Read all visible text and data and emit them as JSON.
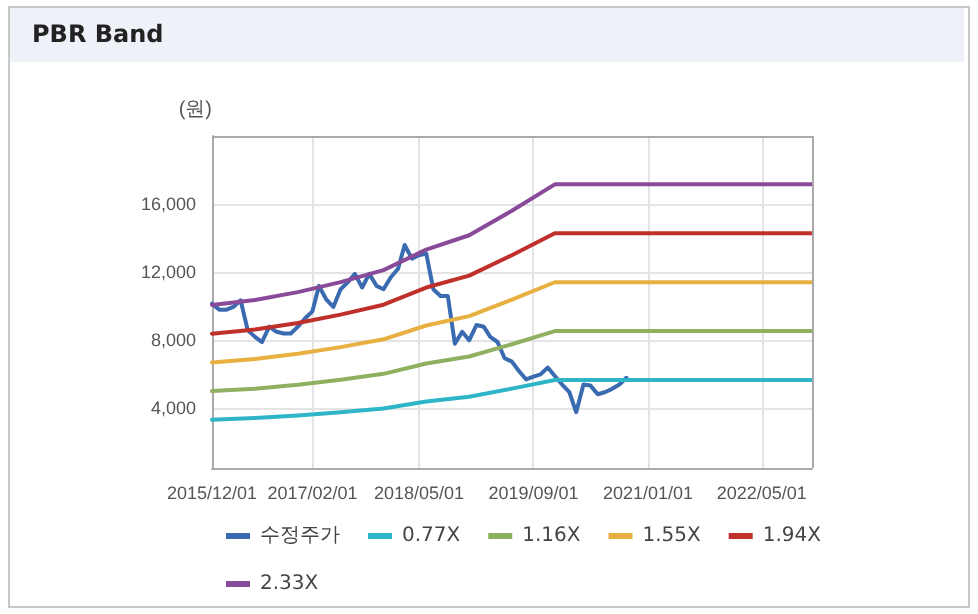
{
  "chart_data": {
    "type": "line",
    "title": "PBR Band",
    "ylabel": "(원)",
    "xlim": [
      "2015-12-01",
      "2022-12-01"
    ],
    "xticks": [
      {
        "value": "2015-12-01",
        "label": "2015/12/01"
      },
      {
        "value": "2017-02-01",
        "label": "2017/02/01"
      },
      {
        "value": "2018-05-01",
        "label": "2018/05/01"
      },
      {
        "value": "2019-09-01",
        "label": "2019/09/01"
      },
      {
        "value": "2021-01-01",
        "label": "2021/01/01"
      },
      {
        "value": "2022-05-01",
        "label": "2022/05/01"
      }
    ],
    "ylim": [
      500,
      20000
    ],
    "yticks": [
      {
        "value": 4000,
        "label": "4,000"
      },
      {
        "value": 8000,
        "label": "8,000"
      },
      {
        "value": 12000,
        "label": "12,000"
      },
      {
        "value": 16000,
        "label": "16,000"
      }
    ],
    "grid": true,
    "legend": "bottom",
    "marker": "none",
    "line_style": "solid",
    "series": [
      {
        "name": "수정주가",
        "color": "#3a6ab0",
        "x": [
          "2015-12",
          "2016-01",
          "2016-02",
          "2016-03",
          "2016-04",
          "2016-05",
          "2016-06",
          "2016-07",
          "2016-08",
          "2016-09",
          "2016-10",
          "2016-11",
          "2016-12",
          "2017-01",
          "2017-02",
          "2017-03",
          "2017-04",
          "2017-05",
          "2017-06",
          "2017-07",
          "2017-08",
          "2017-09",
          "2017-10",
          "2017-11",
          "2017-12",
          "2018-01",
          "2018-02",
          "2018-03",
          "2018-04",
          "2018-05",
          "2018-06",
          "2018-07",
          "2018-08",
          "2018-09",
          "2018-10",
          "2018-11",
          "2018-12",
          "2019-01",
          "2019-02",
          "2019-03",
          "2019-04",
          "2019-05",
          "2019-06",
          "2019-07",
          "2019-08",
          "2019-09",
          "2019-10",
          "2019-11",
          "2019-12",
          "2020-01",
          "2020-02",
          "2020-03",
          "2020-04",
          "2020-05",
          "2020-06",
          "2020-07",
          "2020-08",
          "2020-09",
          "2020-10"
        ],
        "values": [
          10150,
          9800,
          9800,
          9960,
          10350,
          8600,
          8200,
          7900,
          8800,
          8500,
          8400,
          8400,
          8800,
          9300,
          9700,
          11200,
          10400,
          9960,
          11000,
          11400,
          11900,
          11100,
          11900,
          11200,
          11000,
          11700,
          12200,
          13600,
          12800,
          13000,
          13100,
          11000,
          10600,
          10600,
          7800,
          8500,
          8000,
          8900,
          8800,
          8200,
          7900,
          6950,
          6750,
          6200,
          5700,
          5870,
          6000,
          6400,
          5900,
          5400,
          4950,
          3780,
          5400,
          5340,
          4830,
          4950,
          5150,
          5400,
          5800
        ]
      },
      {
        "name": "0.77X",
        "color": "#2fb5c8",
        "x": [
          "2015-12",
          "2016-06",
          "2016-12",
          "2017-06",
          "2017-12",
          "2018-06",
          "2018-12",
          "2019-06",
          "2019-12",
          "2022-12"
        ],
        "values": [
          3330,
          3430,
          3580,
          3770,
          4000,
          4400,
          4680,
          5160,
          5670,
          5670
        ]
      },
      {
        "name": "1.16X",
        "color": "#8fb060",
        "x": [
          "2015-12",
          "2016-06",
          "2016-12",
          "2017-06",
          "2017-12",
          "2018-06",
          "2018-12",
          "2019-06",
          "2019-12",
          "2022-12"
        ],
        "values": [
          5020,
          5160,
          5390,
          5680,
          6030,
          6640,
          7050,
          7770,
          8540,
          8540
        ]
      },
      {
        "name": "1.55X",
        "color": "#e8b040",
        "x": [
          "2015-12",
          "2016-06",
          "2016-12",
          "2017-06",
          "2017-12",
          "2018-06",
          "2018-12",
          "2019-06",
          "2019-12",
          "2022-12"
        ],
        "values": [
          6700,
          6900,
          7210,
          7600,
          8060,
          8870,
          9420,
          10390,
          11410,
          11410
        ]
      },
      {
        "name": "1.94X",
        "color": "#c0302a",
        "x": [
          "2015-12",
          "2016-06",
          "2016-12",
          "2017-06",
          "2017-12",
          "2018-06",
          "2018-12",
          "2019-06",
          "2019-12",
          "2022-12"
        ],
        "values": [
          8390,
          8630,
          9020,
          9510,
          10090,
          11100,
          11800,
          13000,
          14290,
          14290
        ]
      },
      {
        "name": "2.33X",
        "color": "#8a4a9a",
        "x": [
          "2015-12",
          "2016-06",
          "2016-12",
          "2017-06",
          "2017-12",
          "2018-06",
          "2018-12",
          "2019-06",
          "2019-12",
          "2022-12"
        ],
        "values": [
          10080,
          10370,
          10830,
          11420,
          12120,
          13330,
          14170,
          15610,
          17160,
          17160
        ]
      }
    ]
  }
}
